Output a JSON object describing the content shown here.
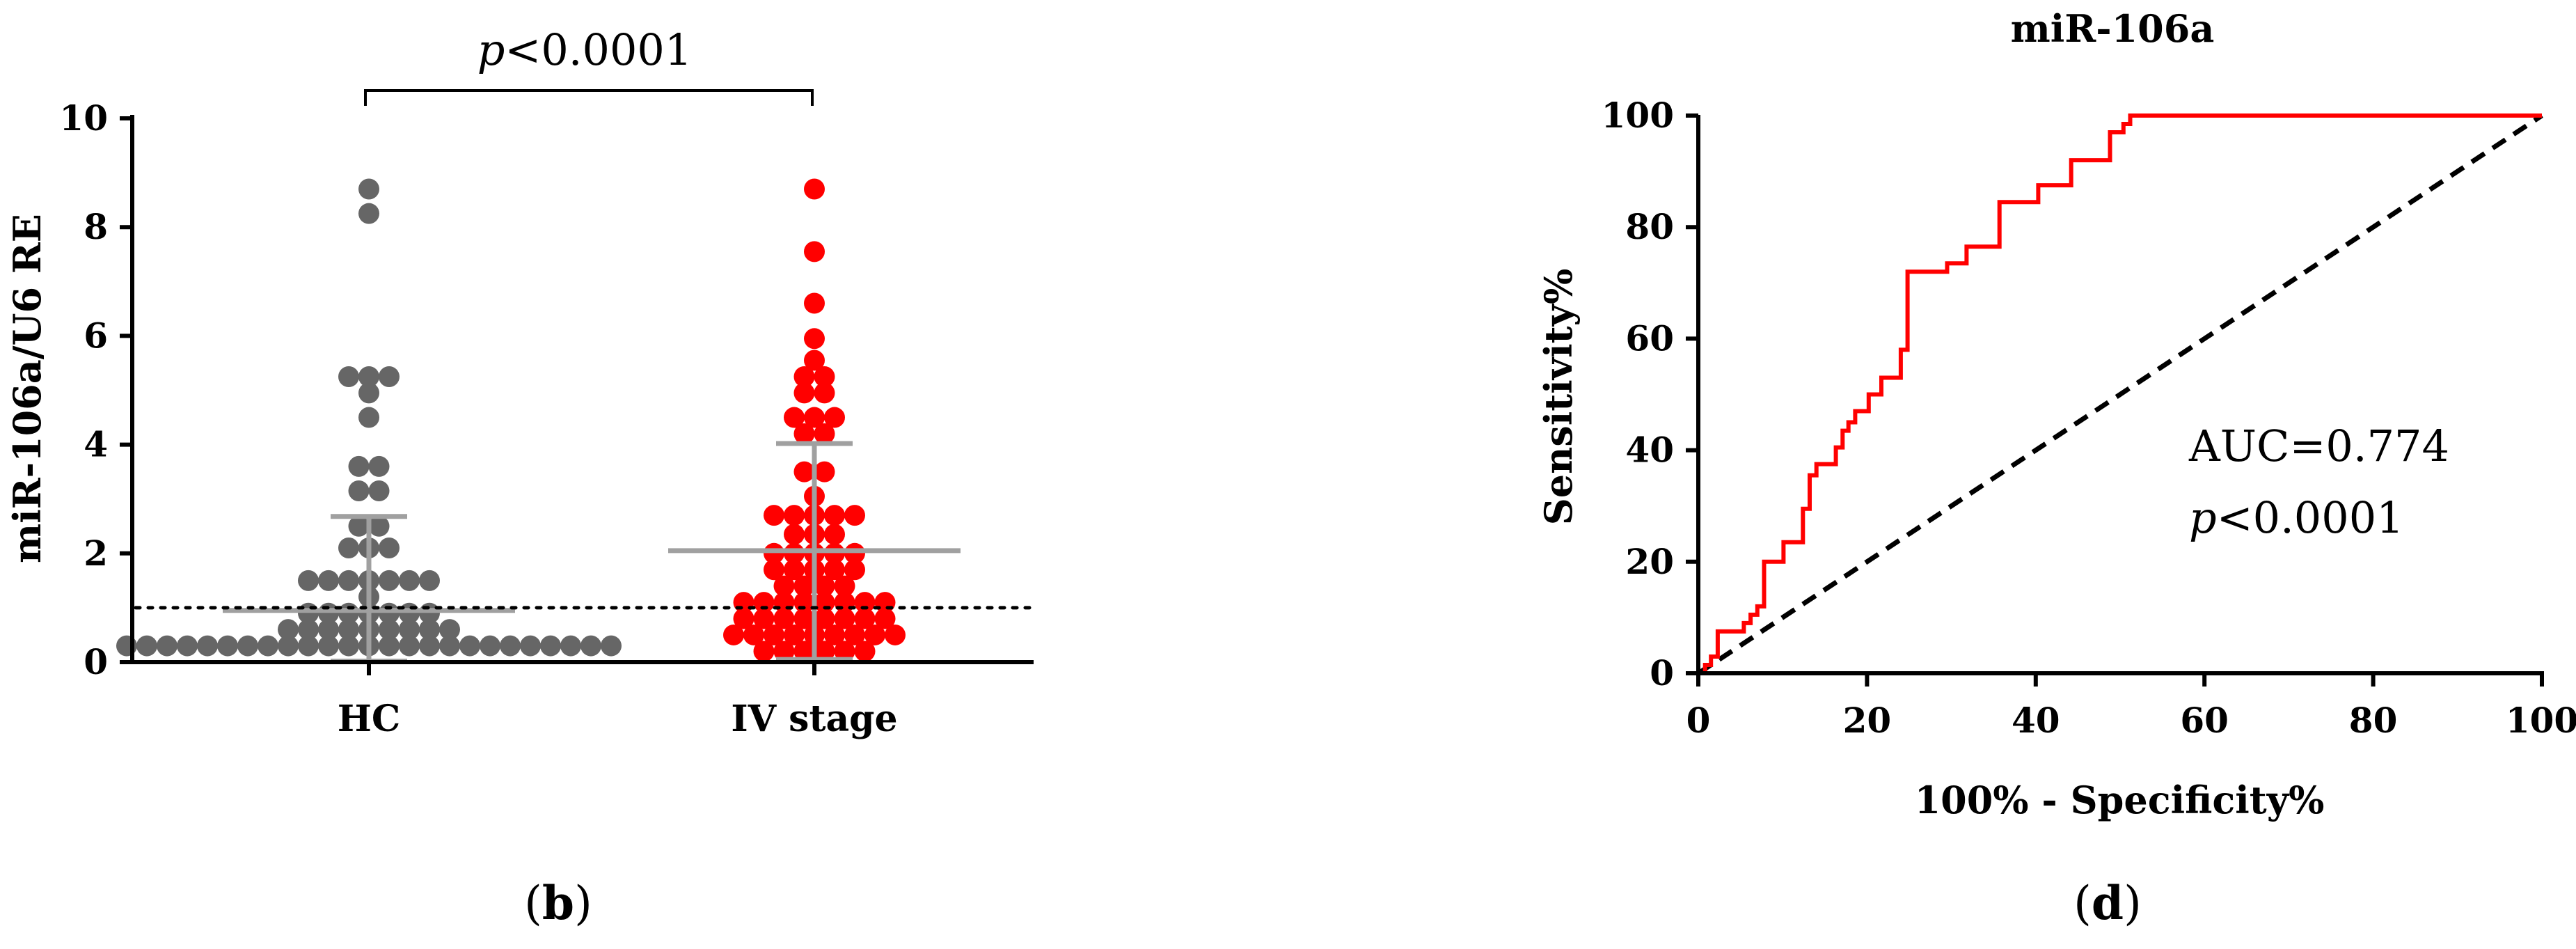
{
  "panels": {
    "b": {
      "label": "b",
      "significance": {
        "prefix": "p",
        "text": "<0.0001"
      },
      "ylabel": "miR-106a/U6 RE",
      "reference_line": 1.0
    },
    "d": {
      "label": "d",
      "title": "miR-106a",
      "xlabel": "100% - Specificity%",
      "ylabel": "Sensitivity%",
      "auc_text": "AUC=0.774",
      "p_prefix": "p",
      "p_text": "<0.0001"
    }
  },
  "colors": {
    "hc": "#666666",
    "iv": "#ff0000",
    "roc": "#ff0000",
    "diagonal": "#000000",
    "error_bar": "#a0a0a0"
  },
  "chart_data": [
    {
      "type": "scatter",
      "ylim": [
        0,
        10
      ],
      "yticks": [
        0,
        2,
        4,
        6,
        8,
        10
      ],
      "categories": [
        "HC",
        "IV stage"
      ],
      "series": [
        {
          "name": "HC",
          "mean": 0.95,
          "sd_low": 0.02,
          "sd_high": 2.68,
          "values": [
            8.7,
            8.25,
            5.2,
            5.25,
            5.05,
            4.95,
            4.5,
            3.6,
            3.6,
            3.15,
            3.05,
            2.5,
            2.5,
            2.1,
            2.05,
            1.85,
            1.5,
            1.45,
            1.45,
            1.45,
            1.5,
            1.5,
            1.25,
            1.2,
            0.9,
            0.9,
            0.9,
            0.85,
            0.9,
            0.65,
            0.65,
            0.6,
            0.6,
            0.6,
            0.6,
            0.55,
            0.5,
            0.35,
            0.35,
            0.35,
            0.3,
            0.3,
            0.25,
            0.2,
            0.2,
            0.2,
            0.15,
            0.1,
            0.1,
            0.1,
            0.1,
            0.1,
            0.05,
            0.05,
            0.05,
            0.05,
            0.05,
            0.05,
            0.05,
            0.05,
            0.02,
            0.02,
            0.02,
            0.02,
            0.02
          ]
        },
        {
          "name": "IV stage",
          "mean": 2.05,
          "sd_low": 0.05,
          "sd_high": 4.02,
          "values": [
            8.7,
            7.55,
            6.6,
            5.95,
            5.55,
            5.25,
            5.0,
            4.95,
            4.75,
            4.5,
            4.5,
            4.25,
            4.2,
            4.15,
            3.5,
            3.45,
            3.05,
            2.7,
            2.65,
            2.55,
            2.5,
            2.45,
            2.35,
            2.3,
            2.2,
            2.0,
            2.0,
            1.9,
            1.85,
            1.85,
            1.7,
            1.65,
            1.5,
            1.45,
            1.45,
            1.4,
            1.35,
            1.3,
            1.25,
            1.1,
            1.0,
            1.0,
            0.95,
            0.9,
            0.85,
            0.85,
            0.85,
            0.8,
            0.7,
            0.7,
            0.65,
            0.6,
            0.6,
            0.55,
            0.55,
            0.5,
            0.45,
            0.45,
            0.4,
            0.4,
            0.35,
            0.3,
            0.3,
            0.25,
            0.2,
            0.2,
            0.15,
            0.1,
            0.1,
            0.08
          ]
        }
      ]
    },
    {
      "type": "line",
      "xlim": [
        0,
        100
      ],
      "ylim": [
        0,
        100
      ],
      "xticks": [
        0,
        20,
        40,
        60,
        80,
        100
      ],
      "yticks": [
        0,
        20,
        40,
        60,
        80,
        100
      ],
      "series": [
        {
          "x": [
            0,
            0.8,
            0.8,
            1.5,
            1.5,
            2.3,
            2.3,
            5.4,
            5.4,
            6.2,
            6.2,
            7.0,
            7.0,
            7.8,
            7.8,
            9.3,
            9.3,
            10.1,
            10.1,
            11.6,
            11.6,
            12.4,
            12.4,
            13.2,
            13.2,
            14.0,
            14.0,
            15.5,
            15.5,
            16.3,
            16.3,
            17.1,
            17.1,
            17.8,
            17.8,
            18.6,
            18.6,
            20.2,
            20.2,
            21.7,
            21.7,
            23.3,
            23.3,
            24.0,
            24.0,
            24.8,
            24.8,
            25.6,
            25.6,
            29.5,
            29.5,
            31.8,
            31.8,
            33.3,
            33.3,
            35.7,
            35.7,
            38.8,
            38.8,
            38.8,
            40.3,
            40.3,
            44.2,
            44.2,
            47.3,
            47.3,
            48.8,
            48.8,
            50.4,
            50.4,
            51.2,
            51.2,
            52.0,
            52.0,
            100
          ],
          "y": [
            0,
            0,
            1.5,
            1.5,
            3.0,
            3.0,
            7.5,
            7.5,
            9.0,
            9.0,
            10.5,
            10.5,
            12.0,
            12.0,
            20.0,
            20.0,
            20.0,
            20.0,
            23.5,
            23.5,
            23.5,
            23.5,
            29.5,
            29.5,
            35.5,
            35.5,
            37.5,
            37.5,
            37.5,
            37.5,
            40.5,
            40.5,
            43.5,
            43.5,
            45.0,
            45.0,
            47.0,
            47.0,
            50.0,
            50.0,
            53.0,
            53.0,
            53.0,
            53.0,
            58.0,
            58.0,
            72.0,
            72.0,
            72.0,
            72.0,
            73.5,
            73.5,
            76.5,
            76.5,
            76.5,
            76.5,
            84.5,
            84.5,
            84.5,
            84.5,
            84.5,
            87.5,
            87.5,
            92.0,
            92.0,
            92.0,
            92.0,
            97.0,
            97.0,
            98.5,
            98.5,
            100,
            100,
            100,
            100
          ]
        }
      ],
      "reference_diagonal": true
    }
  ]
}
